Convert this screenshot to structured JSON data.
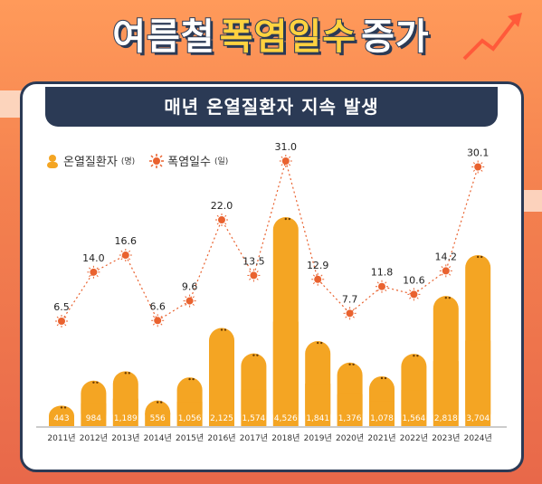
{
  "title": {
    "part1": "여름철",
    "part2": "폭염일수",
    "part3": "증가"
  },
  "banner": "매년 온열질환자 지속 발생",
  "legend": {
    "patients_label": "온열질환자",
    "patients_unit": "(명)",
    "heat_label": "폭염일수",
    "heat_unit": "(일)"
  },
  "colors": {
    "bar": "#f4a523",
    "bar_dark": "#e88a14",
    "dot": "#e9622f",
    "navy": "#2b3a55"
  },
  "chart_data": {
    "type": "bar",
    "categories": [
      "2011년",
      "2012년",
      "2013년",
      "2014년",
      "2015년",
      "2016년",
      "2017년",
      "2018년",
      "2019년",
      "2020년",
      "2021년",
      "2022년",
      "2023년",
      "2024년"
    ],
    "series": [
      {
        "name": "온열질환자(명)",
        "type": "bar",
        "values": [
          443,
          984,
          1189,
          556,
          1056,
          2125,
          1574,
          4526,
          1841,
          1376,
          1078,
          1564,
          2818,
          3704
        ],
        "labels": [
          "443",
          "984",
          "1,189",
          "556",
          "1,056",
          "2,125",
          "1,574",
          "4,526",
          "1,841",
          "1,376",
          "1,078",
          "1,564",
          "2,818",
          "3,704"
        ]
      },
      {
        "name": "폭염일수(일)",
        "type": "line",
        "values": [
          6.5,
          14.0,
          16.6,
          6.6,
          9.6,
          22.0,
          13.5,
          31.0,
          12.9,
          7.7,
          11.8,
          10.6,
          14.2,
          30.1
        ],
        "labels": [
          "6.5",
          "14.0",
          "16.6",
          "6.6",
          "9.6",
          "22.0",
          "13.5",
          "31.0",
          "12.9",
          "7.7",
          "11.8",
          "10.6",
          "14.2",
          "30.1"
        ]
      }
    ]
  }
}
